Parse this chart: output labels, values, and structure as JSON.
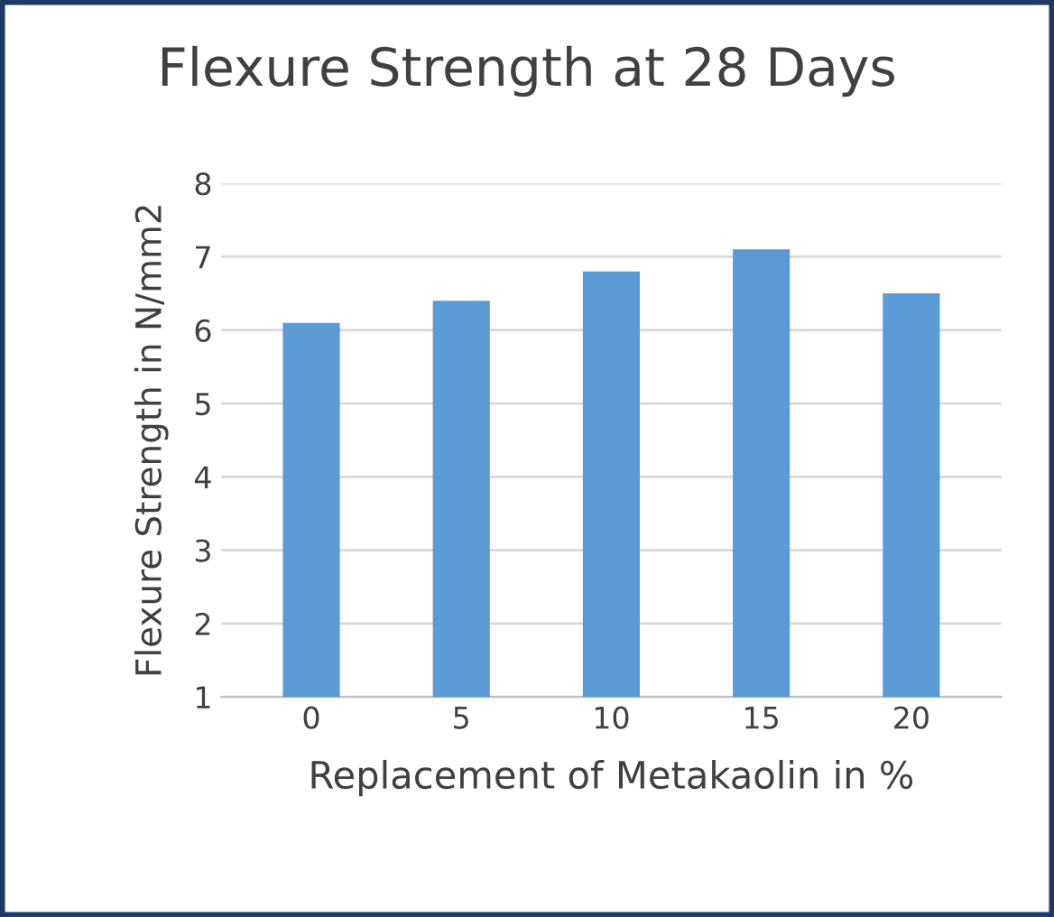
{
  "chart_data": {
    "type": "bar",
    "title": "Flexure Strength at 28 Days",
    "xlabel": "Replacement of Metakaolin in %",
    "ylabel": "Flexure Strength in N/mm2",
    "categories": [
      "0",
      "5",
      "10",
      "15",
      "20"
    ],
    "values": [
      6.1,
      6.4,
      6.8,
      7.1,
      6.5
    ],
    "color": "#5b9bd5",
    "ylim": [
      1,
      8
    ],
    "yticks": [
      1,
      2,
      3,
      4,
      5,
      6,
      7,
      8
    ],
    "grid": "y",
    "legend": false
  }
}
